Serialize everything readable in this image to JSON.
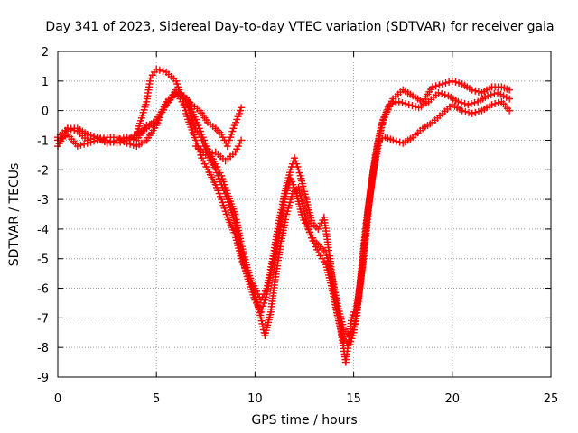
{
  "chart_data": {
    "type": "scatter",
    "title": "Day 341 of 2023, Sidereal Day-to-day VTEC variation (SDTVAR) for receiver gaia",
    "xlabel": "GPS time / hours",
    "ylabel": "SDTVAR / TECUs",
    "xlim": [
      0,
      25
    ],
    "ylim": [
      -9,
      2
    ],
    "xticks": [
      "0",
      "5",
      "10",
      "15",
      "20",
      "25"
    ],
    "yticks": [
      "2",
      "1",
      "0",
      "-1",
      "-2",
      "-3",
      "-4",
      "-5",
      "-6",
      "-7",
      "-8",
      "-9"
    ],
    "grid": true,
    "marker": "+",
    "color": "#ff0000",
    "series": [
      {
        "points": [
          [
            0,
            -1.2
          ],
          [
            0.5,
            -0.6
          ],
          [
            1.0,
            -0.7
          ],
          [
            1.5,
            -1.0
          ],
          [
            2.0,
            -0.9
          ],
          [
            2.5,
            -1.1
          ],
          [
            3.0,
            -1.0
          ],
          [
            3.5,
            -0.9
          ],
          [
            4.0,
            -1.0
          ],
          [
            4.5,
            -0.5
          ],
          [
            5.0,
            -0.4
          ],
          [
            5.5,
            0.2
          ],
          [
            6.0,
            0.7
          ],
          [
            6.3,
            0.5
          ],
          [
            6.6,
            0.3
          ],
          [
            7.0,
            -0.3
          ],
          [
            7.3,
            -0.8
          ],
          [
            7.6,
            -1.3
          ],
          [
            8.0,
            -1.8
          ],
          [
            8.3,
            -2.2
          ],
          [
            8.6,
            -2.8
          ],
          [
            9.0,
            -3.5
          ],
          [
            9.3,
            -4.5
          ],
          [
            9.6,
            -5.3
          ],
          [
            10.0,
            -6.2
          ],
          [
            10.3,
            -7.0
          ],
          [
            10.5,
            -7.6
          ],
          [
            10.8,
            -6.8
          ],
          [
            11.0,
            -5.8
          ],
          [
            11.3,
            -4.5
          ],
          [
            11.6,
            -3.5
          ],
          [
            11.9,
            -2.8
          ],
          [
            12.2,
            -2.6
          ],
          [
            12.5,
            -3.4
          ],
          [
            12.8,
            -4.2
          ],
          [
            13.0,
            -4.5
          ],
          [
            13.3,
            -4.9
          ],
          [
            13.6,
            -5.2
          ],
          [
            13.9,
            -6.0
          ],
          [
            14.2,
            -7.0
          ],
          [
            14.5,
            -7.8
          ],
          [
            14.8,
            -7.9
          ],
          [
            15.0,
            -7.5
          ],
          [
            15.3,
            -6.0
          ],
          [
            15.6,
            -4.0
          ],
          [
            15.9,
            -2.5
          ],
          [
            16.2,
            -1.2
          ],
          [
            16.5,
            -0.3
          ],
          [
            17.0,
            0.4
          ],
          [
            17.5,
            0.7
          ],
          [
            18.0,
            0.5
          ],
          [
            18.5,
            0.3
          ],
          [
            19.0,
            0.8
          ],
          [
            19.5,
            0.9
          ],
          [
            20.0,
            1.0
          ],
          [
            20.5,
            0.9
          ],
          [
            21.0,
            0.7
          ],
          [
            21.5,
            0.6
          ],
          [
            22.0,
            0.8
          ],
          [
            22.5,
            0.8
          ],
          [
            22.9,
            0.7
          ]
        ]
      },
      {
        "points": [
          [
            0,
            -0.9
          ],
          [
            0.5,
            -0.6
          ],
          [
            1.0,
            -0.6
          ],
          [
            1.5,
            -0.8
          ],
          [
            2.0,
            -0.9
          ],
          [
            2.5,
            -1.0
          ],
          [
            3.0,
            -1.1
          ],
          [
            3.5,
            -1.0
          ],
          [
            4.0,
            -0.8
          ],
          [
            4.5,
            0.3
          ],
          [
            4.7,
            1.1
          ],
          [
            5.0,
            1.4
          ],
          [
            5.5,
            1.3
          ],
          [
            6.0,
            1.0
          ],
          [
            6.3,
            0.4
          ],
          [
            6.6,
            -0.3
          ],
          [
            7.0,
            -1.0
          ],
          [
            7.3,
            -1.6
          ],
          [
            7.6,
            -2.0
          ],
          [
            8.0,
            -2.5
          ],
          [
            8.3,
            -3.0
          ],
          [
            8.6,
            -3.6
          ],
          [
            9.0,
            -4.2
          ],
          [
            9.3,
            -5.0
          ],
          [
            9.6,
            -5.5
          ],
          [
            10.0,
            -6.0
          ],
          [
            10.3,
            -6.4
          ],
          [
            10.6,
            -6.0
          ],
          [
            10.9,
            -5.0
          ],
          [
            11.2,
            -3.8
          ],
          [
            11.5,
            -2.8
          ],
          [
            11.8,
            -2.0
          ],
          [
            12.0,
            -1.6
          ],
          [
            12.3,
            -2.2
          ],
          [
            12.6,
            -3.0
          ],
          [
            12.9,
            -3.8
          ],
          [
            13.2,
            -4.0
          ],
          [
            13.5,
            -3.6
          ],
          [
            13.8,
            -5.0
          ],
          [
            14.0,
            -6.2
          ],
          [
            14.3,
            -7.2
          ],
          [
            14.6,
            -8.5
          ],
          [
            14.9,
            -7.0
          ],
          [
            15.2,
            -6.5
          ],
          [
            15.5,
            -5.0
          ],
          [
            15.8,
            -3.0
          ],
          [
            16.1,
            -1.5
          ],
          [
            16.4,
            -0.5
          ],
          [
            16.8,
            0.2
          ],
          [
            17.3,
            0.3
          ],
          [
            17.8,
            0.2
          ],
          [
            18.3,
            0.1
          ],
          [
            18.8,
            0.3
          ],
          [
            19.3,
            0.6
          ],
          [
            19.8,
            0.5
          ],
          [
            20.3,
            0.3
          ],
          [
            20.8,
            0.2
          ],
          [
            21.3,
            0.3
          ],
          [
            21.8,
            0.5
          ],
          [
            22.3,
            0.6
          ],
          [
            22.9,
            0.4
          ]
        ]
      },
      {
        "points": [
          [
            0,
            -1.0
          ],
          [
            0.5,
            -0.8
          ],
          [
            1.0,
            -1.2
          ],
          [
            1.5,
            -1.1
          ],
          [
            2.0,
            -1.0
          ],
          [
            2.5,
            -0.9
          ],
          [
            3.0,
            -0.9
          ],
          [
            3.5,
            -1.1
          ],
          [
            4.0,
            -1.2
          ],
          [
            4.5,
            -1.0
          ],
          [
            5.0,
            -0.5
          ],
          [
            5.5,
            0.3
          ],
          [
            6.0,
            0.6
          ],
          [
            6.3,
            0.3
          ],
          [
            6.6,
            0.1
          ],
          [
            7.0,
            -0.6
          ],
          [
            7.3,
            -1.0
          ],
          [
            7.6,
            -1.5
          ],
          [
            8.0,
            -2.0
          ],
          [
            8.3,
            -2.5
          ],
          [
            8.6,
            -3.0
          ],
          [
            9.0,
            -3.8
          ],
          [
            9.3,
            -4.8
          ],
          [
            9.6,
            -5.6
          ],
          [
            10.0,
            -6.4
          ],
          [
            10.3,
            -6.8
          ],
          [
            10.6,
            -6.2
          ],
          [
            10.9,
            -5.2
          ],
          [
            11.2,
            -4.2
          ],
          [
            11.5,
            -3.0
          ],
          [
            11.8,
            -2.3
          ],
          [
            12.1,
            -2.8
          ],
          [
            12.4,
            -3.6
          ],
          [
            12.7,
            -4.0
          ],
          [
            13.0,
            -4.4
          ],
          [
            13.3,
            -4.6
          ],
          [
            13.6,
            -4.8
          ],
          [
            13.9,
            -5.6
          ],
          [
            14.2,
            -6.6
          ],
          [
            14.5,
            -7.4
          ],
          [
            14.8,
            -7.6
          ],
          [
            15.1,
            -7.2
          ],
          [
            15.4,
            -5.5
          ],
          [
            15.7,
            -3.5
          ],
          [
            16.0,
            -2.0
          ],
          [
            16.3,
            -1.0
          ],
          [
            16.6,
            -0.9
          ],
          [
            17.0,
            -1.0
          ],
          [
            17.5,
            -1.1
          ],
          [
            18.0,
            -0.9
          ],
          [
            18.5,
            -0.6
          ],
          [
            19.0,
            -0.4
          ],
          [
            19.5,
            -0.1
          ],
          [
            20.0,
            0.2
          ],
          [
            20.5,
            0.0
          ],
          [
            21.0,
            -0.1
          ],
          [
            21.5,
            0.0
          ],
          [
            22.0,
            0.2
          ],
          [
            22.5,
            0.3
          ],
          [
            22.9,
            0.0
          ]
        ]
      },
      {
        "points": [
          [
            4.0,
            -0.8
          ],
          [
            4.5,
            -0.6
          ],
          [
            5.0,
            -0.3
          ],
          [
            5.5,
            0.2
          ],
          [
            6.0,
            0.6
          ],
          [
            6.4,
            0.5
          ],
          [
            6.8,
            0.2
          ],
          [
            7.2,
            0.0
          ],
          [
            7.6,
            -0.4
          ],
          [
            8.0,
            -0.6
          ],
          [
            8.3,
            -0.8
          ],
          [
            8.6,
            -1.2
          ],
          [
            8.9,
            -0.6
          ],
          [
            9.2,
            -0.1
          ],
          [
            9.3,
            0.1
          ]
        ]
      },
      {
        "points": [
          [
            7.0,
            -1.2
          ],
          [
            7.5,
            -1.5
          ],
          [
            8.0,
            -1.4
          ],
          [
            8.5,
            -1.7
          ],
          [
            9.0,
            -1.4
          ],
          [
            9.3,
            -1.0
          ]
        ]
      }
    ]
  }
}
